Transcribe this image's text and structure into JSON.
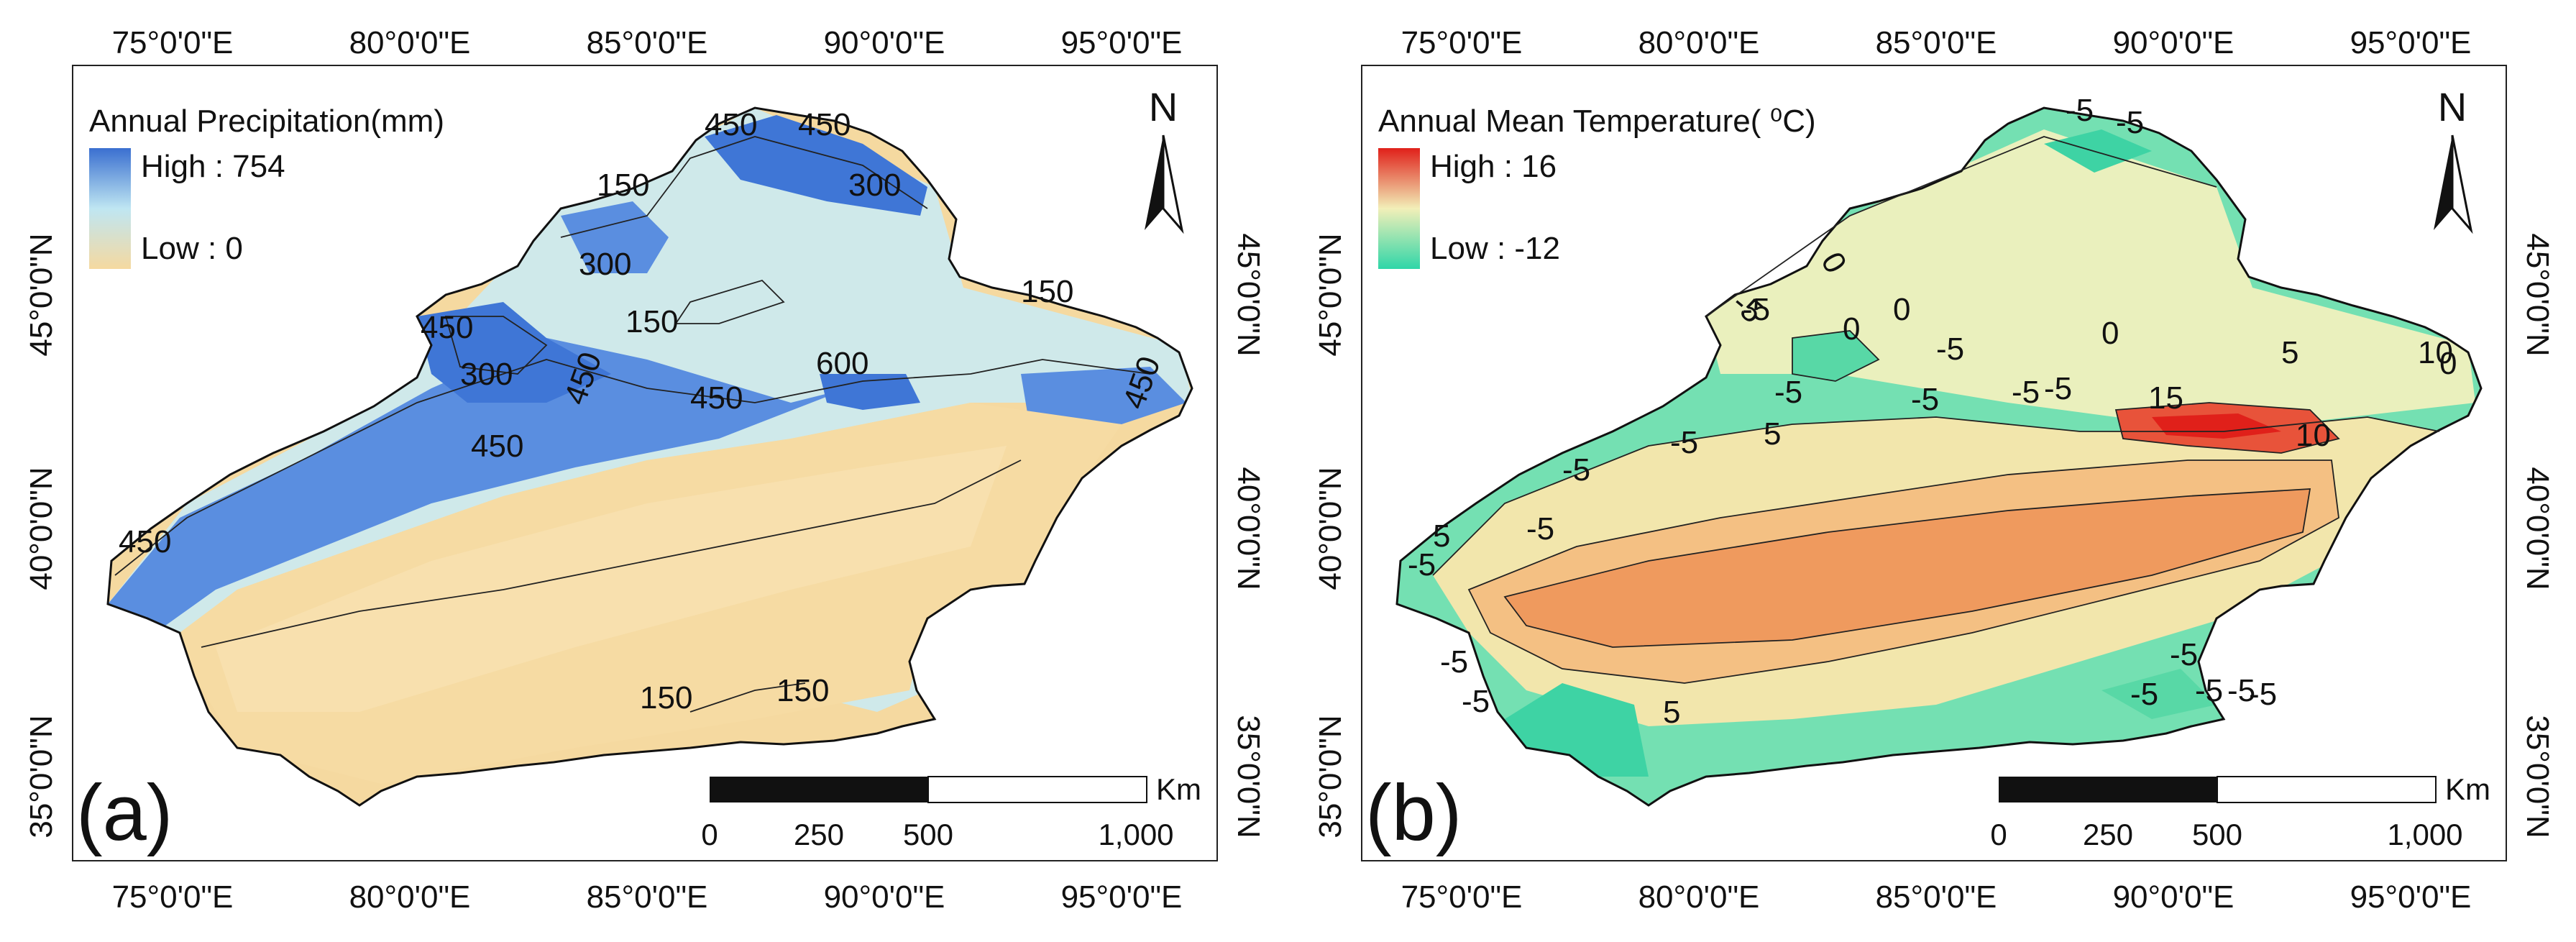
{
  "panels": [
    {
      "id": "a",
      "panel_label": "(a)",
      "legend": {
        "title": "Annual Precipitation(mm)",
        "high_label": "High : 754",
        "low_label": "Low : 0",
        "high_color": "#3a6fd0",
        "mid_color": "#bfe6f2",
        "low_color": "#f5d9a0"
      },
      "contour_labels": [
        "450",
        "450",
        "300",
        "150",
        "300",
        "150",
        "450",
        "300",
        "450",
        "150",
        "600",
        "450",
        "450",
        "450",
        "450",
        "150",
        "150"
      ],
      "scale_bar": {
        "ticks": [
          "0",
          "250",
          "500",
          "1,000"
        ],
        "unit": "Km"
      }
    },
    {
      "id": "b",
      "panel_label": "(b)",
      "legend": {
        "title": "Annual Mean Temperature( ⁰C)",
        "high_label": "High : 16",
        "low_label": "Low : -12",
        "high_color": "#e0201a",
        "mid_color": "#f2efb8",
        "low_color": "#2fd6a8"
      },
      "contour_labels": [
        "-5",
        "-5",
        "0",
        "-5",
        "0",
        "0",
        "-5",
        "0",
        "5",
        "10",
        "-5",
        "-5",
        "-5",
        "15",
        "10",
        "-5",
        "-5",
        "-5",
        "5",
        "-5",
        "-5",
        "-5",
        "-5",
        "-5",
        "-5",
        "-5",
        "5",
        "-5",
        "-5",
        "-5",
        "5",
        "0"
      ],
      "scale_bar": {
        "ticks": [
          "0",
          "250",
          "500",
          "1,000"
        ],
        "unit": "Km"
      }
    }
  ],
  "axes": {
    "top_ticks": [
      "75°0'0\"E",
      "80°0'0\"E",
      "85°0'0\"E",
      "90°0'0\"E",
      "95°0'0\"E"
    ],
    "bottom_ticks": [
      "75°0'0\"E",
      "80°0'0\"E",
      "85°0'0\"E",
      "90°0'0\"E",
      "95°0'0\"E"
    ],
    "left_ticks": [
      "45°0'0\"N",
      "40°0'0\"N",
      "35°0'0\"N"
    ],
    "right_ticks": [
      "45°0'0\"N",
      "40°0'0\"N",
      "35°0'0\"N"
    ]
  },
  "north_arrow": {
    "label": "N"
  },
  "icons": [
    "north-arrow-icon"
  ]
}
